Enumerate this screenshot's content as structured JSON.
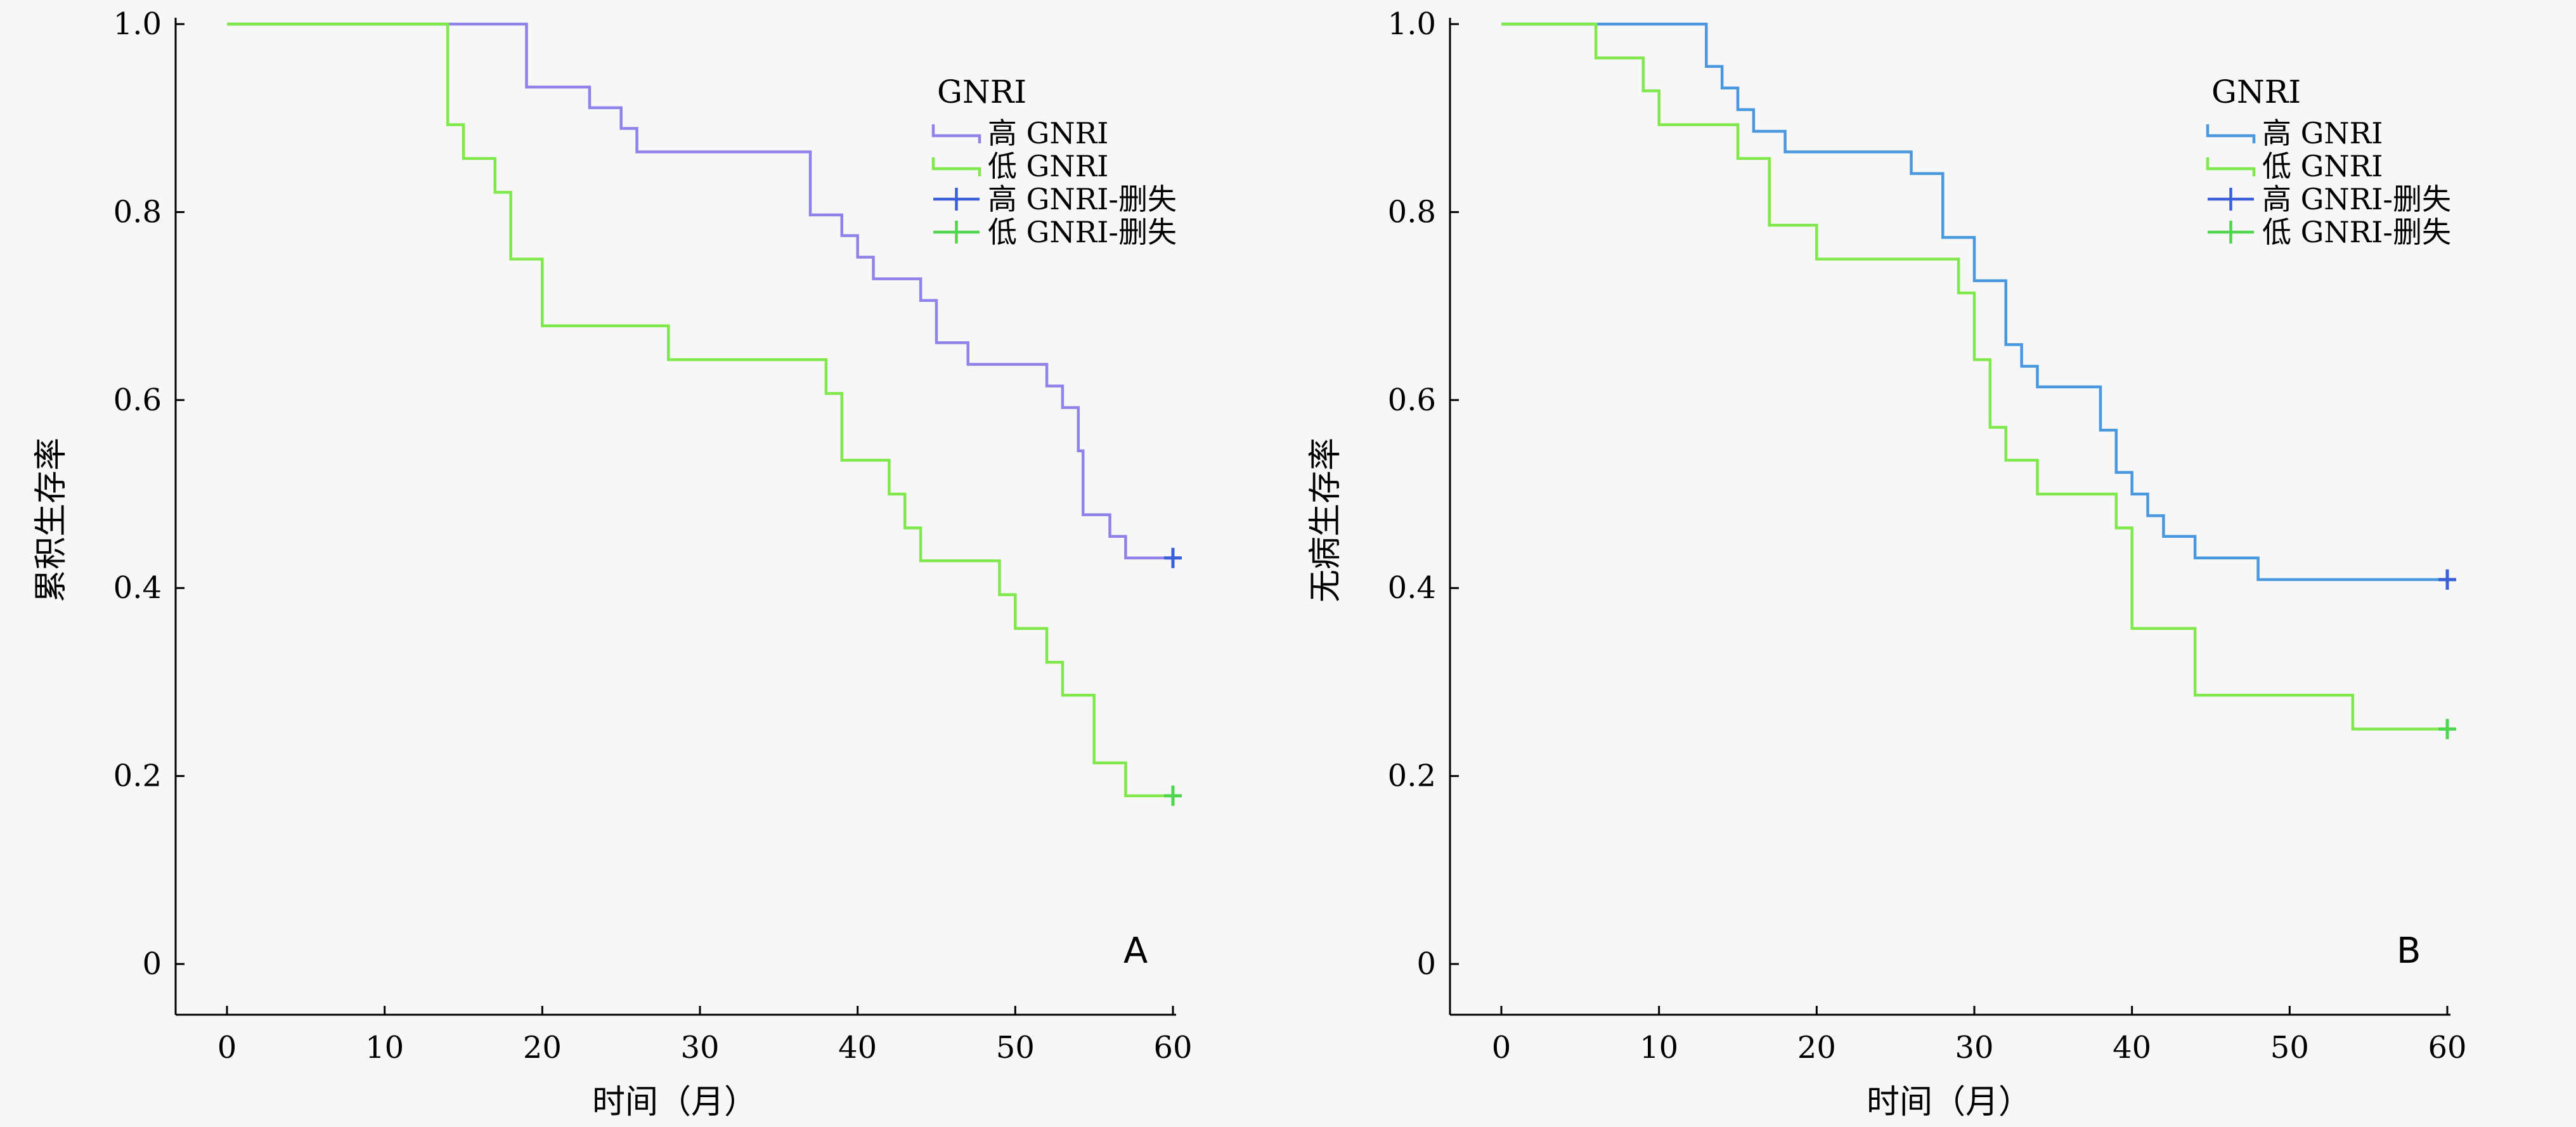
{
  "colors": {
    "high": "#8f82ea",
    "high_alt": "#4a98e0",
    "low": "#7fe84a",
    "censor_high": "#3a5fd9",
    "censor_low": "#4fd64f"
  },
  "chart_data": [
    {
      "type": "line",
      "panel": "A",
      "xlabel": "时间（月）",
      "ylabel": "累积生存率",
      "xlim": [
        0,
        60
      ],
      "ylim": [
        0,
        1.0
      ],
      "x_ticks": [
        "0",
        "10",
        "20",
        "30",
        "40",
        "50",
        "60"
      ],
      "y_ticks": [
        "0",
        "0.2",
        "0.4",
        "0.6",
        "0.8",
        "1.0"
      ],
      "legend": {
        "title": "GNRI",
        "position": "top-right",
        "entries": [
          "高 GNRI",
          "低 GNRI",
          "高 GNRI-删失",
          "低 GNRI-删失"
        ]
      },
      "series": [
        {
          "name": "高 GNRI",
          "color_key": "high",
          "x": [
            0,
            19,
            23,
            25,
            26,
            37,
            39,
            40,
            41,
            44,
            45,
            47,
            52,
            53,
            54,
            54.3,
            56,
            57,
            60
          ],
          "y": [
            1.0,
            0.933,
            0.911,
            0.889,
            0.864,
            0.797,
            0.775,
            0.752,
            0.729,
            0.706,
            0.661,
            0.638,
            0.615,
            0.592,
            0.546,
            0.478,
            0.455,
            0.432,
            0.432
          ]
        },
        {
          "name": "低 GNRI",
          "color_key": "low",
          "x": [
            0,
            14,
            15,
            17,
            18,
            20,
            28,
            38,
            39,
            42,
            43,
            44,
            49,
            50,
            52,
            53,
            55,
            57,
            60
          ],
          "y": [
            1.0,
            0.893,
            0.857,
            0.821,
            0.75,
            0.679,
            0.643,
            0.607,
            0.536,
            0.5,
            0.464,
            0.429,
            0.393,
            0.357,
            0.321,
            0.286,
            0.214,
            0.179,
            0.179
          ]
        }
      ],
      "censored": [
        {
          "series": "高 GNRI-删失",
          "x": 60,
          "y": 0.432
        },
        {
          "series": "低 GNRI-删失",
          "x": 60,
          "y": 0.179
        }
      ]
    },
    {
      "type": "line",
      "panel": "B",
      "xlabel": "时间（月）",
      "ylabel": "无病生存率",
      "xlim": [
        0,
        60
      ],
      "ylim": [
        0,
        1.0
      ],
      "x_ticks": [
        "0",
        "10",
        "20",
        "30",
        "40",
        "50",
        "60"
      ],
      "y_ticks": [
        "0",
        "0.2",
        "0.4",
        "0.6",
        "0.8",
        "1.0"
      ],
      "legend": {
        "title": "GNRI",
        "position": "top-right",
        "entries": [
          "高 GNRI",
          "低 GNRI",
          "高 GNRI-删失",
          "低 GNRI-删失"
        ]
      },
      "series": [
        {
          "name": "高 GNRI",
          "color_key": "high_alt",
          "x": [
            0,
            13,
            14,
            15,
            16,
            18,
            26,
            28,
            30,
            32,
            33,
            34,
            38,
            39,
            40,
            41,
            42,
            44,
            48,
            60
          ],
          "y": [
            1.0,
            0.955,
            0.932,
            0.909,
            0.886,
            0.864,
            0.841,
            0.773,
            0.727,
            0.659,
            0.636,
            0.614,
            0.568,
            0.523,
            0.5,
            0.477,
            0.455,
            0.432,
            0.409,
            0.409
          ]
        },
        {
          "name": "低 GNRI",
          "color_key": "low",
          "x": [
            0,
            6,
            9,
            10,
            15,
            17,
            20,
            29,
            30,
            31,
            32,
            34,
            39,
            40,
            44,
            54,
            60
          ],
          "y": [
            1.0,
            0.964,
            0.929,
            0.893,
            0.857,
            0.786,
            0.75,
            0.714,
            0.643,
            0.571,
            0.536,
            0.5,
            0.464,
            0.357,
            0.286,
            0.25,
            0.25
          ]
        }
      ],
      "censored": [
        {
          "series": "高 GNRI-删失",
          "x": 60,
          "y": 0.409
        },
        {
          "series": "低 GNRI-删失",
          "x": 60,
          "y": 0.25
        }
      ]
    }
  ]
}
